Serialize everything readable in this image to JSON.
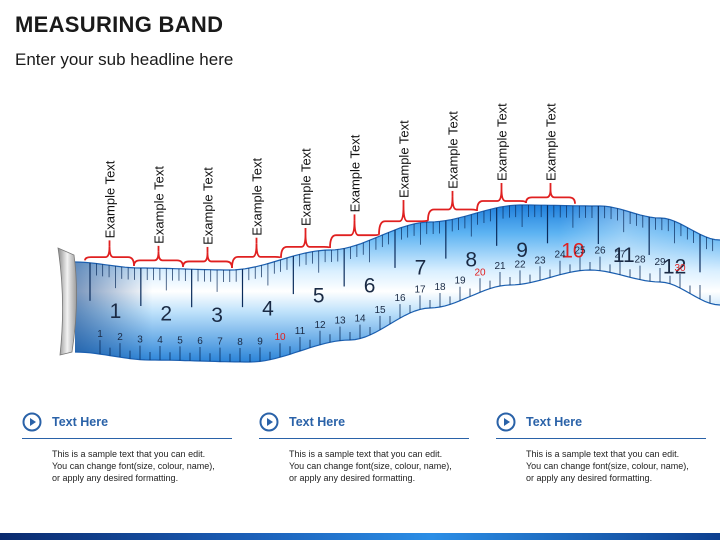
{
  "header": {
    "title": "MEASURING BAND",
    "subtitle": "Enter your sub headline here"
  },
  "callouts": {
    "label": "Example Text",
    "count": 10
  },
  "tape": {
    "big_numbers": [
      "1",
      "2",
      "3",
      "4",
      "5",
      "6",
      "7",
      "8",
      "9",
      "10",
      "11",
      "12"
    ],
    "small_numbers": [
      "1",
      "2",
      "3",
      "4",
      "5",
      "6",
      "7",
      "8",
      "9",
      "10",
      "11",
      "12",
      "13",
      "14",
      "15",
      "16",
      "17",
      "18",
      "19",
      "20",
      "21",
      "22",
      "23",
      "24",
      "25",
      "26",
      "27",
      "28",
      "29",
      "30"
    ],
    "highlight": [
      "10",
      "20",
      "30"
    ],
    "highlight_color": "#e02020",
    "tape_color": "#3d9be9"
  },
  "cards": [
    {
      "title": "Text Here",
      "body": "This is a sample text that you can edit.\nYou can change font(size, colour, name),\nor apply any desired formatting."
    },
    {
      "title": "Text Here",
      "body": "This is a sample text that you can edit.\nYou can change font(size, colour, name),\nor apply any desired formatting."
    },
    {
      "title": "Text Here",
      "body": "This is a sample text that you can edit.\nYou can change font(size, colour, name),\nor apply any desired formatting."
    }
  ],
  "colors": {
    "accent": "#2a62a8",
    "bracket": "#e02020"
  }
}
